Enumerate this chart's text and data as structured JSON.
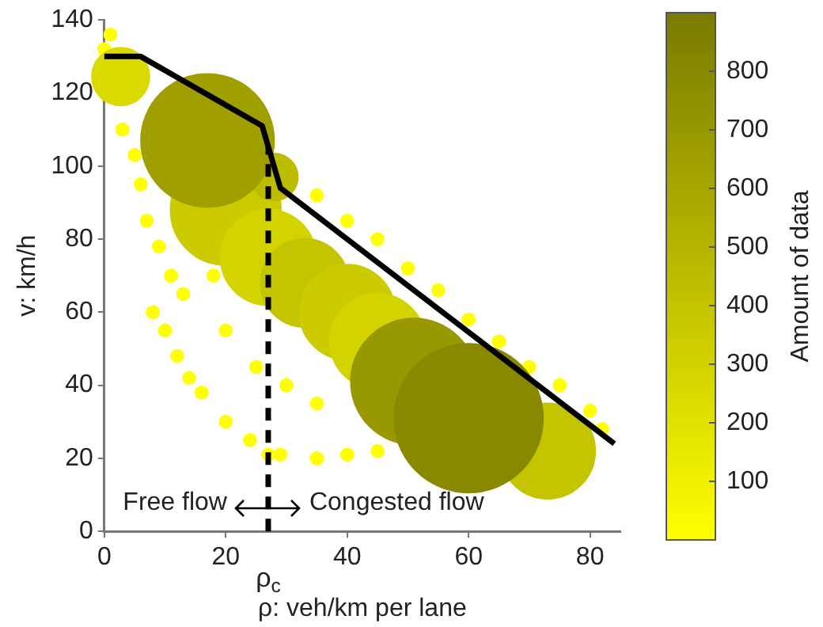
{
  "chart_data": {
    "type": "bubble",
    "xlabel": "ρ: veh/km per lane",
    "ylabel": "v: km/h",
    "clabel": "Amount of data",
    "xlim": [
      0,
      85
    ],
    "xticks": [
      0,
      20,
      40,
      60,
      80
    ],
    "ylim": [
      0,
      140
    ],
    "yticks": [
      0,
      20,
      40,
      60,
      80,
      100,
      120,
      140
    ],
    "clim": [
      0,
      900
    ],
    "cticks": [
      100,
      200,
      300,
      400,
      500,
      600,
      700,
      800
    ],
    "series": [
      {
        "type": "line",
        "color": "#000000",
        "x": [
          0,
          6,
          26,
          29,
          84
        ],
        "values": [
          130,
          130,
          111,
          94,
          24
        ]
      },
      {
        "x": [
          8,
          10,
          12,
          14,
          16,
          20,
          24,
          27,
          29,
          35,
          40,
          45,
          5,
          6,
          7,
          9,
          11,
          13,
          3,
          1,
          0,
          35,
          40,
          45,
          50,
          55,
          60,
          65,
          70,
          75,
          80,
          82,
          30,
          25,
          20,
          18,
          35,
          2.7,
          20,
          27,
          33,
          40,
          45,
          28,
          17,
          51,
          73,
          60
        ],
        "values": [
          60,
          55,
          48,
          42,
          38,
          30,
          25,
          21,
          21,
          20,
          21,
          22,
          103,
          95,
          85,
          78,
          70,
          65,
          110,
          136,
          132,
          92,
          85,
          80,
          72,
          66,
          58,
          52,
          45,
          40,
          33,
          28,
          40,
          45,
          55,
          70,
          35,
          124.5,
          88,
          75,
          68,
          60,
          52,
          97,
          107,
          41,
          22,
          31
        ],
        "sizes": [
          0.007,
          0.007,
          0.007,
          0.007,
          0.007,
          0.007,
          0.007,
          0.007,
          0.007,
          0.007,
          0.007,
          0.007,
          0.007,
          0.007,
          0.007,
          0.007,
          0.007,
          0.007,
          0.007,
          0.007,
          0.007,
          0.007,
          0.007,
          0.007,
          0.007,
          0.007,
          0.007,
          0.007,
          0.007,
          0.007,
          0.007,
          0.007,
          0.007,
          0.007,
          0.007,
          0.007,
          0.007,
          0.15,
          0.55,
          0.41,
          0.35,
          0.41,
          0.41,
          0.1,
          0.8,
          0.72,
          0.41,
          1
        ],
        "colors": [
          "#ffff00",
          "#ffff00",
          "#ffff00",
          "#ffff00",
          "#ffff00",
          "#ffff00",
          "#ffff00",
          "#ffff00",
          "#ffff00",
          "#ffff00",
          "#ffff00",
          "#ffff00",
          "#ffff00",
          "#ffff00",
          "#ffff00",
          "#ffff00",
          "#ffff00",
          "#ffff00",
          "#ffff00",
          "#ffff00",
          "#ffff00",
          "#ffff00",
          "#ffff00",
          "#ffff00",
          "#ffff00",
          "#ffff00",
          "#ffff00",
          "#ffff00",
          "#ffff00",
          "#ffff00",
          "#ffff00",
          "#ffff00",
          "#ffff00",
          "#ffff00",
          "#ffff00",
          "#ffff00",
          "#ffff00",
          "#dada00",
          "#cbcb00",
          "#d3d300",
          "#c4c400",
          "#cbcb00",
          "#d3d300",
          "#bdbd00",
          "#9f9f00",
          "#989800",
          "#c4c400",
          "#898900"
        ],
        "cvalues": [
          1,
          1,
          1,
          1,
          1,
          1,
          1,
          1,
          1,
          1,
          1,
          1,
          1,
          1,
          1,
          1,
          1,
          1,
          1,
          1,
          1,
          1,
          1,
          1,
          1,
          1,
          1,
          1,
          1,
          1,
          1,
          1,
          1,
          1,
          1,
          1,
          1,
          250,
          350,
          300,
          400,
          350,
          300,
          450,
          650,
          700,
          400,
          800
        ]
      }
    ],
    "ref_lines": [
      {
        "axis": "x",
        "value": 27,
        "label": "ρ$_{c}$",
        "color": "#000000",
        "line_style": "dashed"
      }
    ],
    "annotations": [
      "Free flow",
      "Congested flow"
    ],
    "grid": false,
    "legend": false
  }
}
